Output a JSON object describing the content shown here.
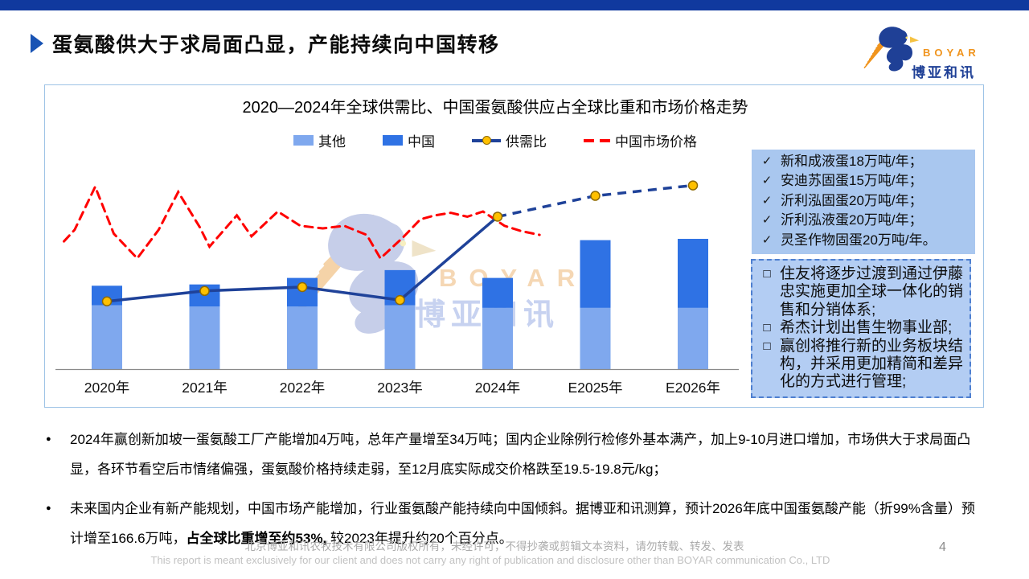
{
  "header": {
    "title": "蛋氨酸供大于求局面凸显，产能持续向中国转移"
  },
  "logo": {
    "en": "BOYAR",
    "cn": "博亚和讯"
  },
  "watermark": {
    "en": "BOYAR",
    "cn": "博亚和讯"
  },
  "chart": {
    "title": "2020—2024年全球供需比、中国蛋氨酸供应占全球比重和市场价格走势",
    "legend": [
      {
        "label": "其他",
        "swatch": "bar-light"
      },
      {
        "label": "中国",
        "swatch": "bar-dark"
      },
      {
        "label": "供需比",
        "swatch": "navy-line-with-dot"
      },
      {
        "label": "中国市场价格",
        "swatch": "red-dashed"
      }
    ]
  },
  "chart_data": {
    "type": "bar",
    "subtype": "stacked-bars-with-lines-combo",
    "title": "2020—2024年全球供需比、中国蛋氨酸供应占全球比重和市场价格走势",
    "categories": [
      "2020年",
      "2021年",
      "2022年",
      "2023年",
      "2024年",
      "E2025年",
      "E2026年"
    ],
    "note": "图中无数值轴与数据标签；以下数值为按像素估读的相对值，100 = 最高柱(E2026年)总高",
    "bar_series": [
      {
        "name": "其他",
        "stack": "bottom",
        "values": [
          49,
          48,
          48,
          49,
          47,
          47,
          47
        ]
      },
      {
        "name": "中国",
        "stack": "top",
        "values": [
          15,
          17,
          22,
          27,
          23,
          52,
          53
        ]
      }
    ],
    "line_series": {
      "name": "供需比",
      "values": [
        52,
        60,
        63,
        53,
        117,
        133,
        141
      ],
      "solid_until_index": 4,
      "dashed_after_index": 4,
      "marker": "orange-dot"
    },
    "price_series": {
      "name": "中国市场价格",
      "style": "red-dashed",
      "points": [
        [
          -0.44,
          98
        ],
        [
          -0.33,
          107
        ],
        [
          -0.12,
          140
        ],
        [
          0.07,
          104
        ],
        [
          0.31,
          85
        ],
        [
          0.53,
          107
        ],
        [
          0.73,
          136
        ],
        [
          0.95,
          109
        ],
        [
          1.05,
          94
        ],
        [
          1.33,
          118
        ],
        [
          1.48,
          102
        ],
        [
          1.75,
          121
        ],
        [
          1.98,
          110
        ],
        [
          2.21,
          108
        ],
        [
          2.43,
          110
        ],
        [
          2.66,
          103
        ],
        [
          2.8,
          85
        ],
        [
          3.03,
          101
        ],
        [
          3.21,
          115
        ],
        [
          3.36,
          118
        ],
        [
          3.52,
          120
        ],
        [
          3.69,
          117
        ],
        [
          3.85,
          121
        ],
        [
          4.07,
          110
        ],
        [
          4.24,
          106
        ],
        [
          4.43,
          103
        ]
      ]
    },
    "ylim": [
      0,
      162
    ],
    "legend_position": "top",
    "y_axis_shown": false,
    "grid": false
  },
  "right_boxes": {
    "capacity": {
      "items": [
        "新和成液蛋18万吨/年；",
        "安迪苏固蛋15万吨/年；",
        "沂利泓固蛋20万吨/年；",
        "沂利泓液蛋20万吨/年；",
        "灵圣作物固蛋20万吨/年。"
      ]
    },
    "companies": {
      "items": [
        "住友将逐步过渡到通过伊藤忠实施更加全球一体化的销售和分销体系;",
        "希杰计划出售生物事业部;",
        "赢创将推行新的业务板块结构，并采用更加精简和差异化的方式进行管理;"
      ]
    }
  },
  "bullets": {
    "b1": "2024年赢创新加坡一蛋氨酸工厂产能增加4万吨，总年产量增至34万吨；国内企业除例行检修外基本满产，加上9-10月进口增加，市场供大于求局面凸显，各环节看空后市情绪偏强，蛋氨酸价格持续走弱，至12月底实际成交价格跌至19.5-19.8元/kg；",
    "b2_pre": "未来国内企业有新产能规划，中国市场产能增加，行业蛋氨酸产能持续向中国倾斜。据博亚和讯测算，预计2026年底中国蛋氨酸产能（折99%含量）预计增至166.6万吨，",
    "b2_bold": "占全球比重增至约53%,",
    "b2_post": " 较2023年提升约20个百分点。"
  },
  "footer": {
    "line_cn": "北京博亚和讯农牧技术有限公司版权所有，未经许可，不得抄袭或剪辑文本资料，请勿转载、转发、发表",
    "line_en": "This report is meant exclusively for our client and does not carry any right of publication and disclosure other than BOYAR communication Co., LTD",
    "page": "4"
  },
  "colors": {
    "top_bar": "#10399E",
    "title_arrow": "#1853B4",
    "card_border": "#9DC3E6",
    "bar_light": "#7FA8EE",
    "bar_dark": "#2F72E4",
    "line_navy": "#1F4299",
    "marker_fill": "#FFC000",
    "marker_stroke": "#8F6A00",
    "price_red": "#FF0000",
    "box_capacity_bg": "#A9C7EF",
    "box_companies_bg": "#B3CDF3",
    "box_companies_border": "#4E7FD0",
    "logo_blue": "#1F4096",
    "logo_orange": "#F0941D"
  }
}
